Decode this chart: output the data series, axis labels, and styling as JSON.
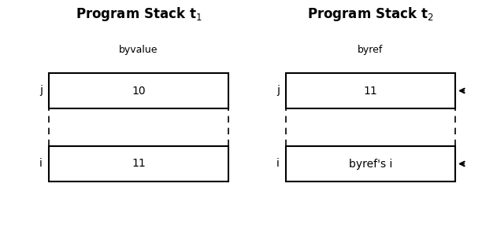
{
  "title_left": "Program Stack t$_1$",
  "title_right": "Program Stack t$_2$",
  "label_byvalue": "byvalue",
  "label_byref": "byref",
  "left_j_label": "j",
  "left_i_label": "i",
  "right_j_label": "j",
  "right_i_label": "i",
  "left_j_value": "10",
  "left_i_value": "11",
  "right_j_value": "11",
  "right_i_value": "byref's i",
  "bg_color": "#ffffff",
  "box_color": "#000000",
  "text_color": "#000000",
  "title_fontsize": 12,
  "label_fontsize": 9,
  "value_fontsize": 10,
  "var_label_fontsize": 10,
  "figsize": [
    6.12,
    3.08
  ],
  "dpi": 100
}
